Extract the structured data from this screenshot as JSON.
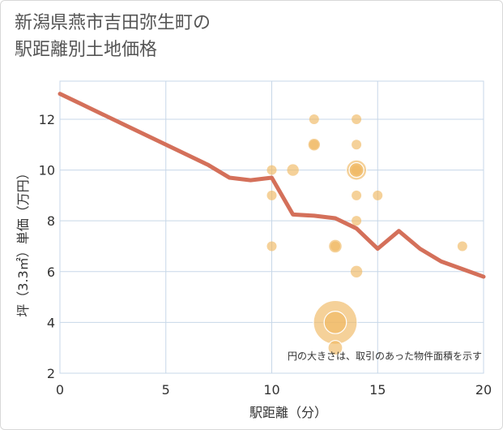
{
  "title_line1": "新潟県燕市吉田弥生町の",
  "title_line2": "駅距離別土地価格",
  "chart_data": {
    "type": "scatter",
    "title": "新潟県燕市吉田弥生町の駅距離別土地価格",
    "xlabel": "駅距離（分）",
    "ylabel": "坪（3.3㎡）単価（万円）",
    "xlim": [
      0,
      20
    ],
    "ylim": [
      2,
      13.5
    ],
    "xticks": [
      0,
      5,
      10,
      15,
      20
    ],
    "yticks": [
      2,
      4,
      6,
      8,
      10,
      12
    ],
    "grid": true,
    "note": "円の大きさは、取引のあった物件面積を示す",
    "colors": {
      "point": "#f0b862",
      "line": "#d4705a"
    },
    "points": [
      {
        "x": 10,
        "y": 10.0,
        "size": 1
      },
      {
        "x": 10,
        "y": 9.0,
        "size": 1
      },
      {
        "x": 10,
        "y": 7.0,
        "size": 1
      },
      {
        "x": 11,
        "y": 10.0,
        "size": 1.2
      },
      {
        "x": 12,
        "y": 12.0,
        "size": 1
      },
      {
        "x": 12,
        "y": 11.0,
        "size": 1.2
      },
      {
        "x": 12,
        "y": 11.0,
        "size": 1
      },
      {
        "x": 13,
        "y": 7.0,
        "size": 1.3
      },
      {
        "x": 13,
        "y": 7.0,
        "size": 1
      },
      {
        "x": 13,
        "y": 4.0,
        "size": 4.5
      },
      {
        "x": 13,
        "y": 4.0,
        "size": 2.3
      },
      {
        "x": 13,
        "y": 3.0,
        "size": 1.5
      },
      {
        "x": 14,
        "y": 12.0,
        "size": 1
      },
      {
        "x": 14,
        "y": 11.0,
        "size": 1
      },
      {
        "x": 14,
        "y": 10.0,
        "size": 2.1
      },
      {
        "x": 14,
        "y": 10.0,
        "size": 1.5
      },
      {
        "x": 14,
        "y": 10.0,
        "size": 1
      },
      {
        "x": 14,
        "y": 9.0,
        "size": 1
      },
      {
        "x": 14,
        "y": 8.0,
        "size": 1
      },
      {
        "x": 14,
        "y": 6.0,
        "size": 1.2
      },
      {
        "x": 15,
        "y": 9.0,
        "size": 1
      },
      {
        "x": 19,
        "y": 7.0,
        "size": 1
      }
    ],
    "trend": {
      "x": [
        0,
        1,
        2,
        3,
        4,
        5,
        6,
        7,
        8,
        9,
        10,
        11,
        12,
        13,
        14,
        15,
        16,
        17,
        18,
        19,
        20
      ],
      "y": [
        13.0,
        12.6,
        12.2,
        11.8,
        11.4,
        11.0,
        10.6,
        10.2,
        9.7,
        9.6,
        9.7,
        8.25,
        8.2,
        8.1,
        7.7,
        6.9,
        7.6,
        6.9,
        6.4,
        6.1,
        5.8
      ]
    }
  }
}
